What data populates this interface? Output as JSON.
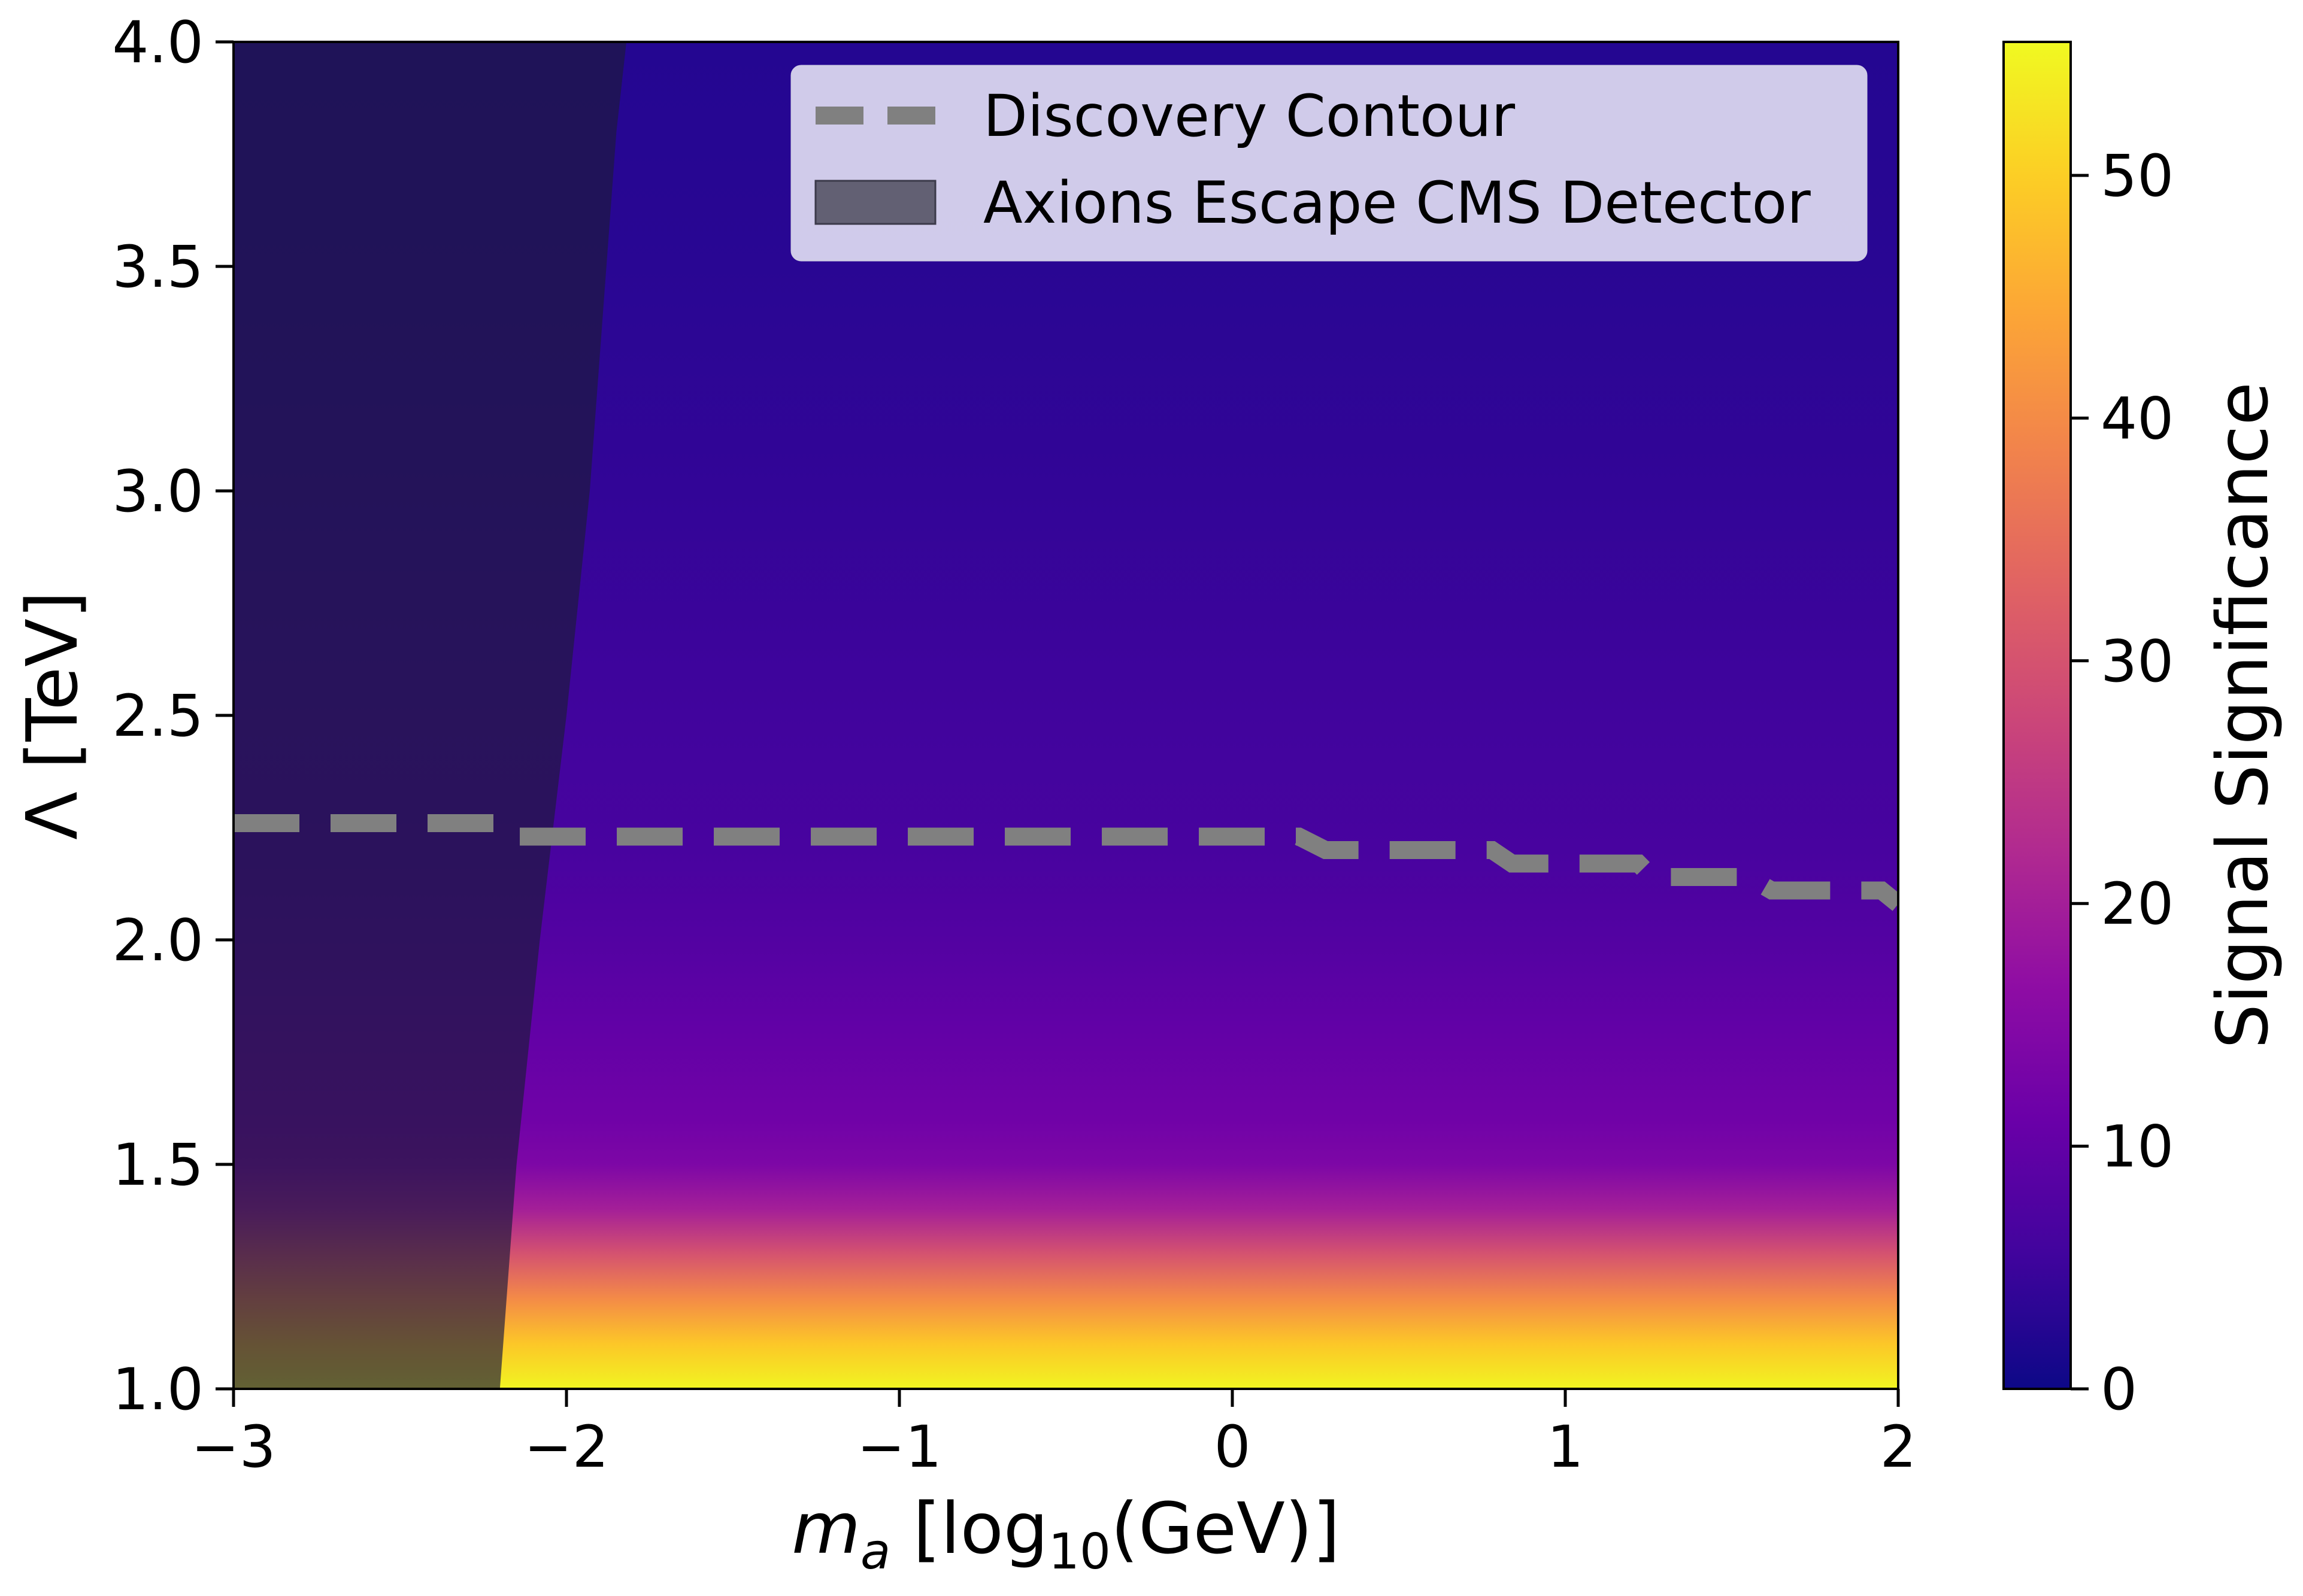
{
  "chart_data": {
    "type": "heatmap",
    "x_range": [
      -3,
      2
    ],
    "y_range": [
      1.0,
      4.0
    ],
    "x_ticks": [
      -3,
      -2,
      -1,
      0,
      1,
      2
    ],
    "x_tick_labels": [
      "−3",
      "−2",
      "−1",
      "0",
      "1",
      "2"
    ],
    "y_ticks": [
      1.0,
      1.5,
      2.0,
      2.5,
      3.0,
      3.5,
      4.0
    ],
    "y_tick_labels": [
      "1.0",
      "1.5",
      "2.0",
      "2.5",
      "3.0",
      "3.5",
      "4.0"
    ],
    "xlabel": {
      "main": "m",
      "sub": "a",
      "rest": " [log",
      "sub2": "10",
      "tail": "(GeV)]"
    },
    "ylabel": "Λ [TeV]",
    "colorbar": {
      "label": "Signal Significance",
      "range": [
        0,
        55.5
      ],
      "ticks": [
        0,
        10,
        20,
        30,
        40,
        50
      ],
      "tick_labels": [
        "0",
        "10",
        "20",
        "30",
        "40",
        "50"
      ],
      "colormap": "plasma"
    },
    "significance_profile": {
      "lambda": [
        1.0,
        1.1,
        1.2,
        1.3,
        1.4,
        1.5,
        1.6,
        1.8,
        2.0,
        2.2,
        2.5,
        3.0,
        3.5,
        4.0
      ],
      "value": [
        55,
        49,
        40,
        30,
        20,
        14,
        12,
        10,
        8,
        6.5,
        5.5,
        4,
        3,
        2.5
      ]
    },
    "discovery_contour": {
      "name": "Discovery Contour",
      "color": "#808080",
      "x": [
        -3.0,
        -2.2,
        -2.15,
        0.2,
        0.28,
        0.78,
        0.84,
        1.22,
        1.26,
        1.55,
        1.62,
        1.95,
        2.0
      ],
      "y": [
        2.26,
        2.26,
        2.23,
        2.23,
        2.2,
        2.2,
        2.17,
        2.17,
        2.14,
        2.14,
        2.11,
        2.11,
        2.08
      ]
    },
    "excluded_region": {
      "name": "Axions Escape CMS Detector",
      "color": "#1e1a3c",
      "boundary_x": [
        -2.2,
        -2.15,
        -2.08,
        -2.0,
        -1.93,
        -1.88,
        -1.85,
        -1.82
      ],
      "boundary_y": [
        1.0,
        1.5,
        2.0,
        2.5,
        3.0,
        3.5,
        3.8,
        4.0
      ]
    },
    "legend": {
      "position": "top-right",
      "entries": [
        "Discovery Contour",
        "Axions Escape CMS Detector"
      ]
    }
  }
}
